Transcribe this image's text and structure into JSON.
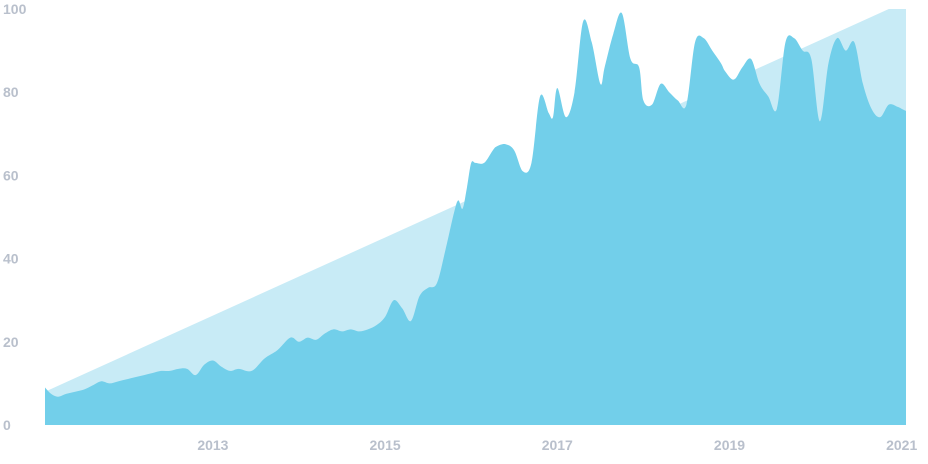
{
  "chart_data": {
    "type": "area",
    "title": "",
    "xlabel": "",
    "ylabel": "",
    "xlim": [
      2011.05,
      2021.05
    ],
    "ylim": [
      0,
      100
    ],
    "grid": false,
    "x_tick_labels": [
      "2013",
      "2015",
      "2017",
      "2019",
      "2021"
    ],
    "x_ticks": [
      2013,
      2015,
      2017,
      2019,
      2021
    ],
    "y_tick_labels": [
      "0",
      "20",
      "40",
      "60",
      "80",
      "100"
    ],
    "y_ticks": [
      0,
      20,
      40,
      60,
      80,
      100
    ],
    "colors": {
      "series": "#72cfea",
      "trend": "#c8ebf6",
      "tick_text": "#b9c0cc"
    },
    "series": [
      {
        "x": [
          2011.05,
          2011.12,
          2011.2,
          2011.3,
          2011.4,
          2011.5,
          2011.6,
          2011.7,
          2011.8,
          2011.9,
          2012.0,
          2012.1,
          2012.2,
          2012.3,
          2012.4,
          2012.5,
          2012.6,
          2012.7,
          2012.8,
          2012.9,
          2013.0,
          2013.1,
          2013.2,
          2013.3,
          2013.45,
          2013.6,
          2013.75,
          2013.9,
          2014.0,
          2014.1,
          2014.2,
          2014.3,
          2014.4,
          2014.5,
          2014.6,
          2014.7,
          2014.8,
          2014.9,
          2015.0,
          2015.1,
          2015.2,
          2015.3,
          2015.4,
          2015.5,
          2015.6,
          2015.7,
          2015.8,
          2015.85,
          2015.9,
          2015.95,
          2016.0,
          2016.05,
          2016.15,
          2016.25,
          2016.3,
          2016.4,
          2016.5,
          2016.6,
          2016.7,
          2016.8,
          2016.9,
          2016.95,
          2017.0,
          2017.1,
          2017.2,
          2017.3,
          2017.4,
          2017.5,
          2017.55,
          2017.65,
          2017.75,
          2017.85,
          2017.95,
          2018.0,
          2018.1,
          2018.2,
          2018.3,
          2018.4,
          2018.5,
          2018.6,
          2018.7,
          2018.8,
          2018.9,
          2018.95,
          2019.05,
          2019.15,
          2019.25,
          2019.35,
          2019.45,
          2019.55,
          2019.65,
          2019.75,
          2019.85,
          2019.95,
          2020.05,
          2020.15,
          2020.25,
          2020.35,
          2020.45,
          2020.55,
          2020.65,
          2020.75,
          2020.85,
          2020.95,
          2021.0,
          2021.05
        ],
        "values": [
          9,
          7.5,
          6.8,
          7.5,
          8,
          8.5,
          9.5,
          10.5,
          10,
          10.5,
          11,
          11.5,
          12,
          12.5,
          13,
          13,
          13.5,
          13.5,
          12,
          14.5,
          15.5,
          14,
          13,
          13.5,
          13,
          16,
          18,
          21,
          20,
          21,
          20.5,
          22,
          23,
          22.5,
          23,
          22.5,
          23,
          24,
          26,
          30,
          28,
          25,
          31,
          33,
          34,
          42,
          51,
          54,
          52,
          57,
          63,
          63,
          63,
          66,
          67,
          67.5,
          66,
          61,
          63,
          79,
          75,
          74,
          81,
          74,
          80,
          97,
          92,
          82,
          86,
          94,
          99,
          88,
          86,
          78,
          77,
          82,
          80,
          78,
          77,
          92,
          93,
          90,
          87,
          85,
          83,
          86,
          88,
          82,
          79,
          76,
          92,
          93,
          90,
          88,
          73,
          87,
          93,
          90,
          92,
          82,
          76,
          74,
          77,
          76.5,
          76,
          75.5
        ]
      }
    ],
    "trend": {
      "x": [
        2011.05,
        2020.85,
        2021.05
      ],
      "values": [
        8,
        100,
        100
      ]
    }
  }
}
